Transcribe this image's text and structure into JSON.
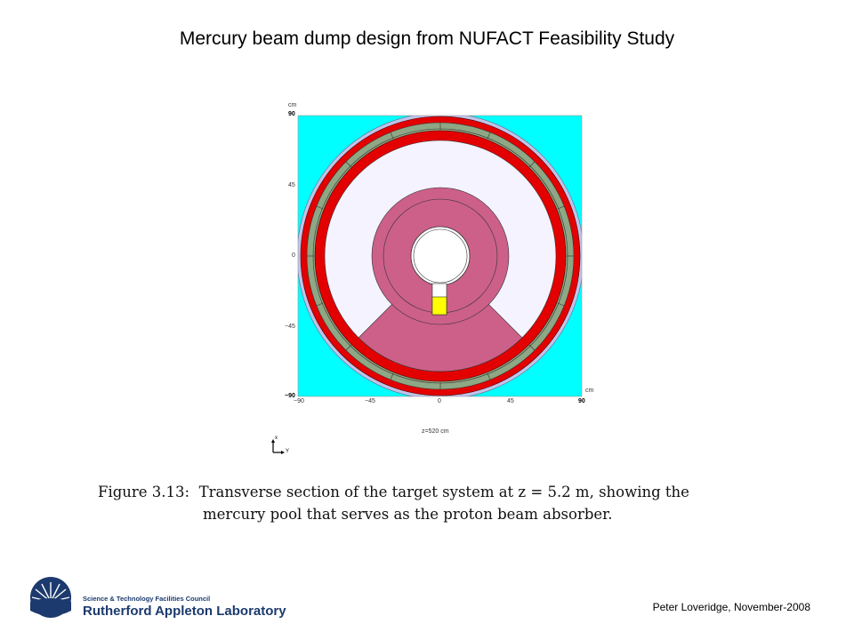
{
  "slide": {
    "title": "Mercury beam dump design from NUFACT Feasibility Study",
    "author": "Peter Loveridge, November-2008"
  },
  "figure": {
    "y_axis_unit": "cm",
    "x_axis_unit": "cm",
    "y_ticks": [
      "90",
      "45",
      "0",
      "−45",
      "−90"
    ],
    "x_ticks": [
      "−90",
      "−45",
      "0",
      "45",
      "90"
    ],
    "z_position_label": "z=520  cm",
    "axis_letters": [
      "x",
      "Y"
    ],
    "colors": {
      "background": "#00ffff",
      "outer_ring": "#bfc3ea",
      "red_ring": "#e30000",
      "green_ring": "#8ea784",
      "inner_space": "#f4f3ff",
      "shield": "#cc6088",
      "mercury_pool": "#ffff00"
    }
  },
  "caption": {
    "label": "Figure 3.13:",
    "line1": "Transverse section of the target system at z = 5.2 m, showing the",
    "line2": "mercury pool that serves as the proton beam absorber."
  },
  "logo": {
    "council": "Science & Technology Facilities Council",
    "lab": "Rutherford Appleton Laboratory"
  }
}
